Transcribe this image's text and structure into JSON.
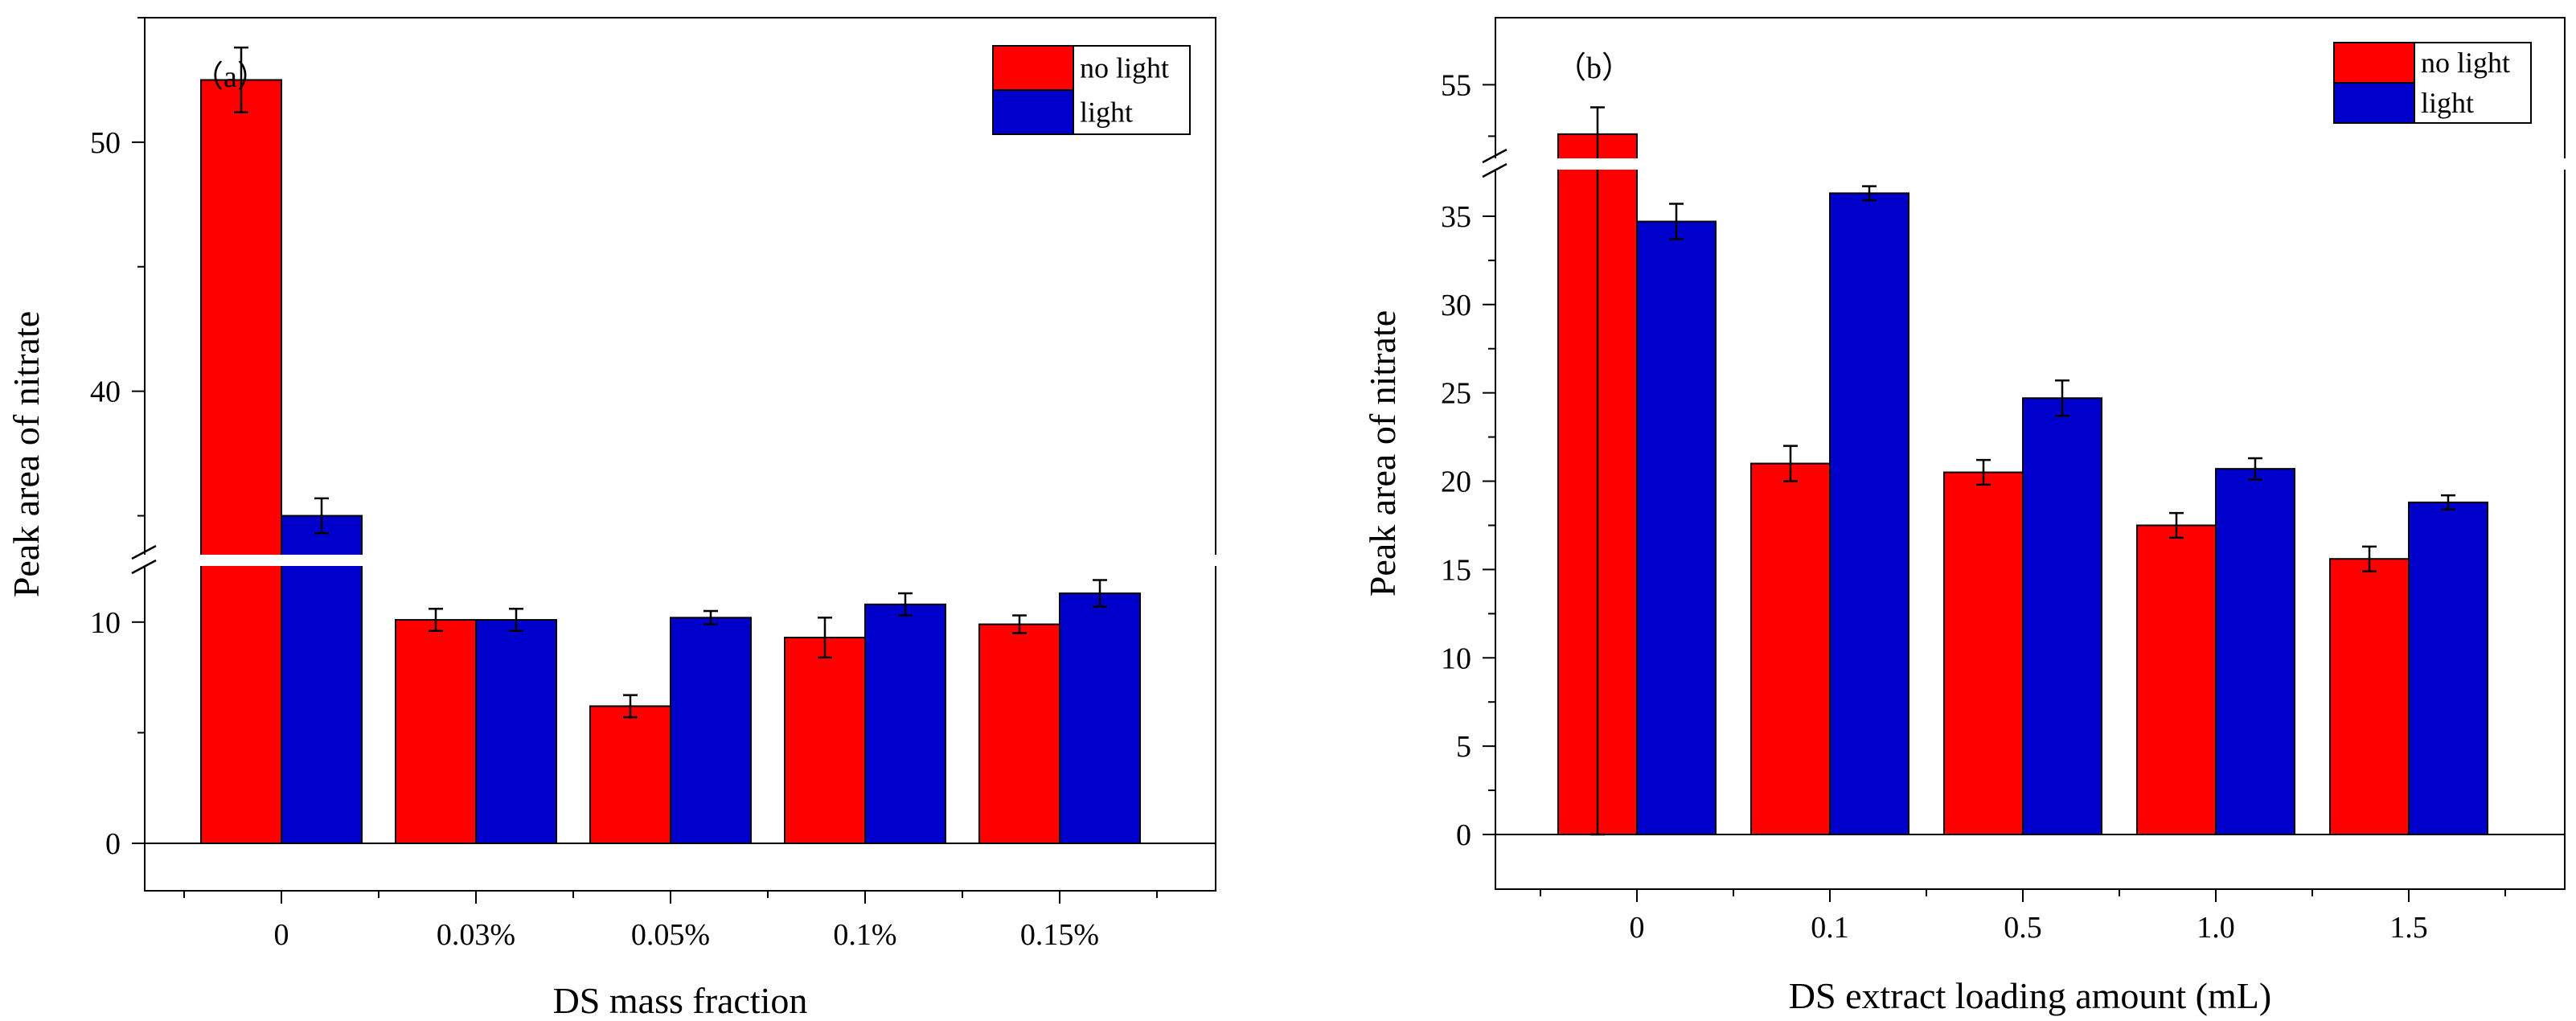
{
  "chart_data": [
    {
      "type": "bar",
      "panel_label": "（a）",
      "categories": [
        "0",
        "0.03%",
        "0.05%",
        "0.1%",
        "0.15%"
      ],
      "series": [
        {
          "name": "no light",
          "color": "#ff0000",
          "values": [
            52.5,
            10.1,
            6.2,
            9.3,
            9.9
          ],
          "errors": [
            1.3,
            0.5,
            0.5,
            0.9,
            0.4
          ]
        },
        {
          "name": "light",
          "color": "#0000cc",
          "values": [
            35.0,
            10.1,
            10.2,
            10.8,
            11.3
          ],
          "errors": [
            0.7,
            0.5,
            0.3,
            0.5,
            0.6
          ]
        }
      ],
      "xlabel": "DS mass fraction",
      "ylabel": "Peak area of nitrate",
      "y_ticks": [
        "0",
        "10",
        "40",
        "50"
      ],
      "axis_break": {
        "lower_range": [
          0,
          12.5
        ],
        "upper_range": [
          33.5,
          55
        ]
      },
      "legend_position": "top-right",
      "grid": false
    },
    {
      "type": "bar",
      "panel_label": "（b）",
      "categories": [
        "0",
        "0.1",
        "0.5",
        "1.0",
        "1.5"
      ],
      "series": [
        {
          "name": "no light",
          "color": "#ff0000",
          "values": [
            52.6,
            21.0,
            20.5,
            17.5,
            15.6
          ],
          "errors": [
            1.3,
            1.0,
            0.7,
            0.7,
            0.7
          ]
        },
        {
          "name": "light",
          "color": "#0000cc",
          "values": [
            34.7,
            36.3,
            24.7,
            20.7,
            18.8
          ],
          "errors": [
            1.0,
            0.4,
            1.0,
            0.6,
            0.4
          ]
        }
      ],
      "xlabel": "DS extract loading amount (mL)",
      "ylabel": "Peak area of nitrate",
      "y_ticks": [
        "0",
        "5",
        "10",
        "15",
        "20",
        "25",
        "30",
        "35",
        "55"
      ],
      "axis_break": {
        "lower_range": [
          0,
          37.5
        ],
        "upper_range": [
          51.5,
          56.5
        ]
      },
      "legend_position": "top-right",
      "grid": false
    }
  ]
}
